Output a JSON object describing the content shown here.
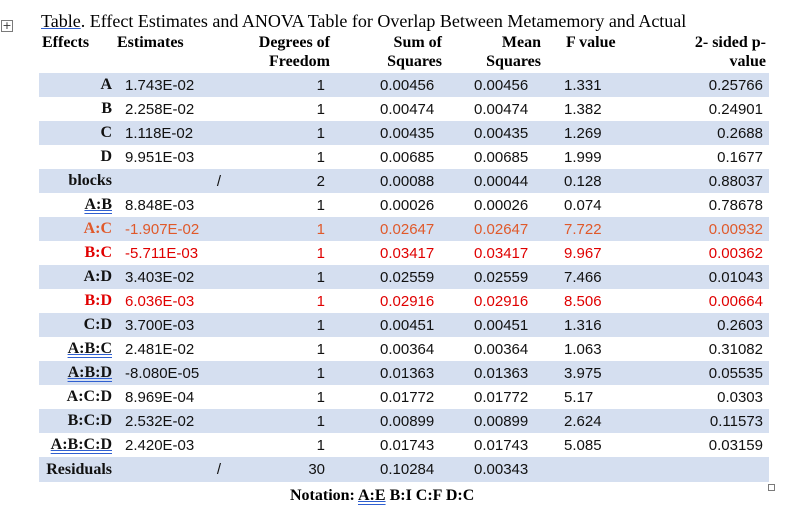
{
  "caption": {
    "label": "Table",
    "rest": ". Effect Estimates and ANOVA Table for Overlap Between Metamemory and Actual"
  },
  "headers": {
    "effects": "Effects",
    "estimates": "Estimates",
    "df_line1": "Degrees of",
    "df_line2": "Freedom",
    "ss_line1": "Sum of",
    "ss_line2": "Squares",
    "ms_line1": "Mean",
    "ms_line2": "Squares",
    "f": "F value",
    "p_line1": "2- sided p-",
    "p_line2": "value"
  },
  "rows": [
    {
      "effect": "A",
      "estimate": "1.743E-02",
      "df": "1",
      "ss": "0.00456",
      "ms": "0.00456",
      "f": "1.331",
      "p": "0.25766"
    },
    {
      "effect": "B",
      "estimate": "2.258E-02",
      "df": "1",
      "ss": "0.00474",
      "ms": "0.00474",
      "f": "1.382",
      "p": "0.24901"
    },
    {
      "effect": "C",
      "estimate": "1.118E-02",
      "df": "1",
      "ss": "0.00435",
      "ms": "0.00435",
      "f": "1.269",
      "p": "0.2688"
    },
    {
      "effect": "D",
      "estimate": "9.951E-03",
      "df": "1",
      "ss": "0.00685",
      "ms": "0.00685",
      "f": "1.999",
      "p": "0.1677"
    },
    {
      "effect": "blocks",
      "estimate": "/",
      "df": "2",
      "ss": "0.00088",
      "ms": "0.00044",
      "f": "0.128",
      "p": "0.88037"
    },
    {
      "effect": "A:B",
      "estimate": "8.848E-03",
      "df": "1",
      "ss": "0.00026",
      "ms": "0.00026",
      "f": "0.074",
      "p": "0.78678"
    },
    {
      "effect": "A:C",
      "estimate": "-1.907E-02",
      "df": "1",
      "ss": "0.02647",
      "ms": "0.02647",
      "f": "7.722",
      "p": "0.00932"
    },
    {
      "effect": "B:C",
      "estimate": "-5.711E-03",
      "df": "1",
      "ss": "0.03417",
      "ms": "0.03417",
      "f": "9.967",
      "p": "0.00362"
    },
    {
      "effect": "A:D",
      "estimate": "3.403E-02",
      "df": "1",
      "ss": "0.02559",
      "ms": "0.02559",
      "f": "7.466",
      "p": "0.01043"
    },
    {
      "effect": "B:D",
      "estimate": "6.036E-03",
      "df": "1",
      "ss": "0.02916",
      "ms": "0.02916",
      "f": "8.506",
      "p": "0.00664"
    },
    {
      "effect": "C:D",
      "estimate": "3.700E-03",
      "df": "1",
      "ss": "0.00451",
      "ms": "0.00451",
      "f": "1.316",
      "p": "0.2603"
    },
    {
      "effect": "A:B:C",
      "estimate": "2.481E-02",
      "df": "1",
      "ss": "0.00364",
      "ms": "0.00364",
      "f": "1.063",
      "p": "0.31082"
    },
    {
      "effect": "A:B:D",
      "estimate": "-8.080E-05",
      "df": "1",
      "ss": "0.01363",
      "ms": "0.01363",
      "f": "3.975",
      "p": "0.05535"
    },
    {
      "effect": "A:C:D",
      "estimate": "8.969E-04",
      "df": "1",
      "ss": "0.01772",
      "ms": "0.01772",
      "f": "5.17",
      "p": "0.0303"
    },
    {
      "effect": "B:C:D",
      "estimate": "2.532E-02",
      "df": "1",
      "ss": "0.00899",
      "ms": "0.00899",
      "f": "2.624",
      "p": "0.11573"
    },
    {
      "effect": "A:B:C:D",
      "estimate": "2.420E-03",
      "df": "1",
      "ss": "0.01743",
      "ms": "0.01743",
      "f": "5.085",
      "p": "0.03159"
    },
    {
      "effect": "Residuals",
      "estimate": "/",
      "df": "30",
      "ss": "0.10284",
      "ms": "0.00343",
      "f": "",
      "p": ""
    }
  ],
  "notation": {
    "prefix": "Notation: ",
    "ae": "A:E",
    "rest": " B:I C:F D:C"
  },
  "colors": {
    "band": "#d5dff0",
    "highlight_orange": "#e0592a",
    "highlight_red": "#e00000"
  }
}
